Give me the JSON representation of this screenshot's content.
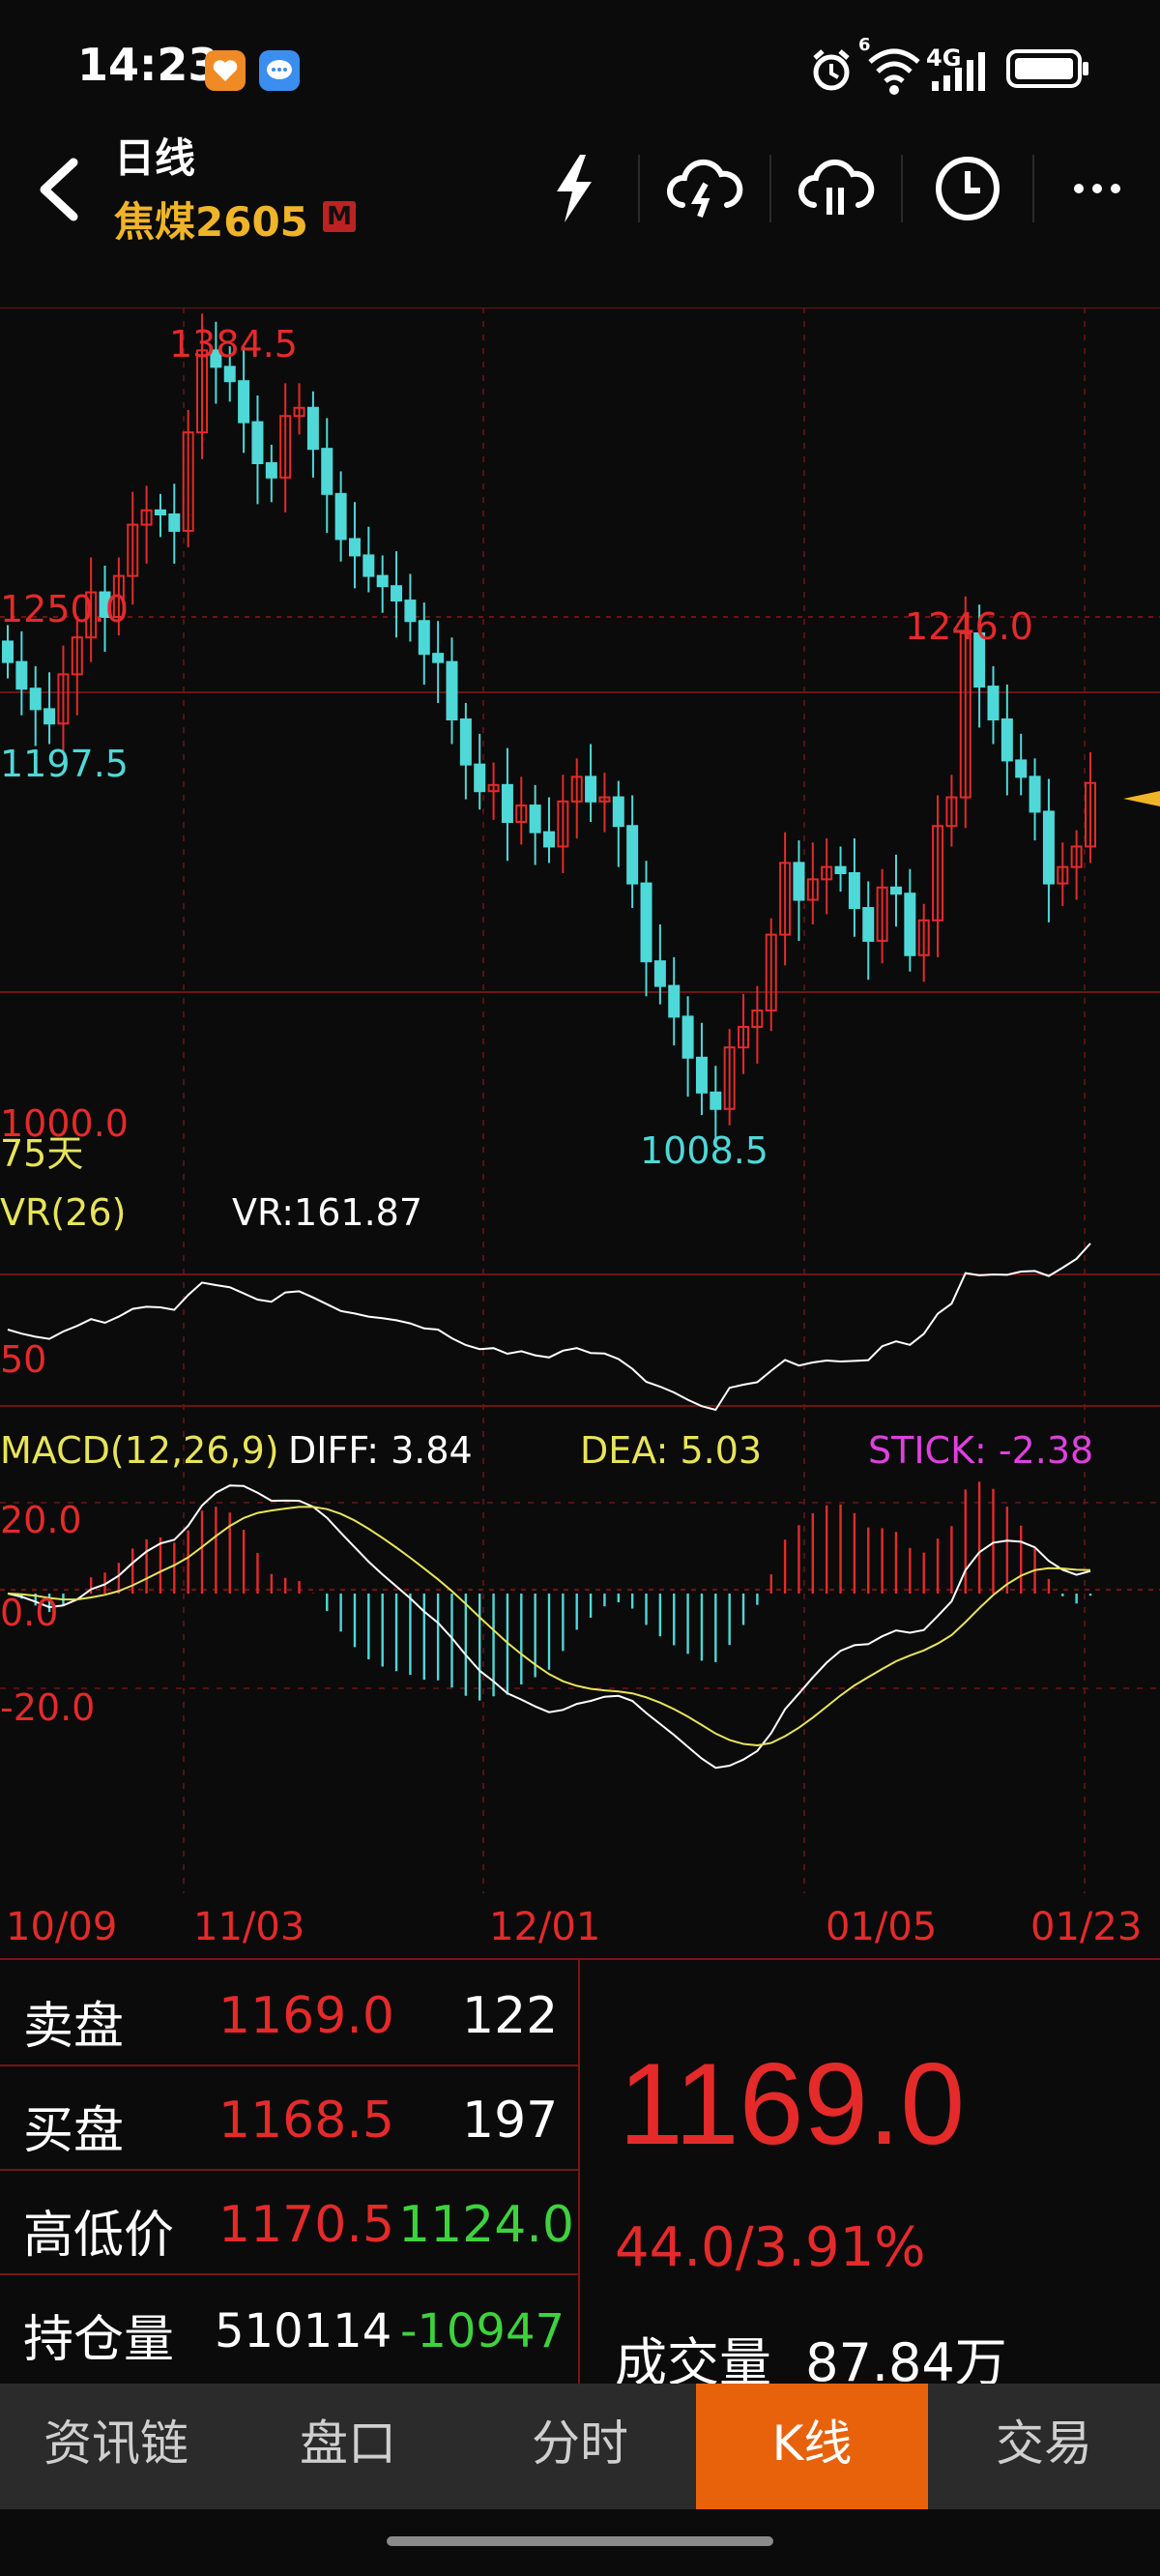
{
  "status": {
    "time": "14:23",
    "network": "4G",
    "sim": "6"
  },
  "header": {
    "title": "日线",
    "subtitle": "焦煤2605",
    "badge": "M"
  },
  "chart": {
    "price_labels": {
      "high": "1384.5",
      "mid": "1250.0",
      "left_low": "1197.5",
      "peak2": "1246.0",
      "low": "1008.5",
      "bottom": "1000.0",
      "period": "75天"
    },
    "vr": {
      "name": "VR(26)",
      "value": "VR:161.87",
      "axis": "50"
    },
    "macd": {
      "name": "MACD(12,26,9)",
      "diff": "DIFF: 3.84",
      "dea": "DEA: 5.03",
      "stick": "STICK: -2.38",
      "axis_top": "20.0",
      "axis_mid": "0.0",
      "axis_low": "-20.0"
    },
    "dates": [
      "10/09",
      "11/03",
      "12/01",
      "01/05",
      "01/23"
    ],
    "colors": {
      "up": "#e52a2a",
      "down": "#4fd8d8",
      "dea": "#e8e45a",
      "stick": "#e040e0",
      "grid": "#6e1414"
    }
  },
  "chart_data": {
    "type": "candlestick",
    "title": "焦煤2605",
    "period": "日线",
    "y_labels": [
      1000.0,
      1250.0
    ],
    "high": 1384.5,
    "low": 1008.5,
    "marked_high2": 1246.0,
    "marked_low_left": 1197.5,
    "x_labels": [
      "10/09",
      "11/03",
      "12/01",
      "01/05",
      "01/23"
    ],
    "closes": [
      1228,
      1215,
      1205,
      1198,
      1222,
      1240,
      1262,
      1250,
      1270,
      1295,
      1302,
      1300,
      1292,
      1340,
      1380,
      1372,
      1365,
      1345,
      1325,
      1318,
      1348,
      1352,
      1332,
      1310,
      1288,
      1280,
      1270,
      1265,
      1258,
      1248,
      1232,
      1228,
      1200,
      1178,
      1165,
      1168,
      1150,
      1158,
      1145,
      1138,
      1160,
      1172,
      1160,
      1162,
      1148,
      1120,
      1082,
      1070,
      1055,
      1035,
      1018,
      1010,
      1040,
      1050,
      1058,
      1095,
      1130,
      1112,
      1122,
      1128,
      1125,
      1108,
      1092,
      1118,
      1115,
      1085,
      1102,
      1148,
      1162,
      1242,
      1216,
      1200,
      1180,
      1172,
      1155,
      1120,
      1128,
      1138,
      1169
    ],
    "vr_series": {
      "name": "VR(26)",
      "last": 161.87,
      "axis_label": 50
    },
    "macd": {
      "diff": 3.84,
      "dea": 5.03,
      "stick": -2.38,
      "axis": [
        20.0,
        0.0,
        -20.0
      ]
    }
  },
  "quote": {
    "sell_label": "卖盘",
    "sell_price": "1169.0",
    "sell_qty": "122",
    "buy_label": "买盘",
    "buy_price": "1168.5",
    "buy_qty": "197",
    "hl_label": "高低价",
    "high": "1170.5",
    "low": "1124.0",
    "oi_label": "持仓量",
    "oi": "510114",
    "oi_change": "-10947",
    "last_price": "1169.0",
    "change": "44.0/3.91%",
    "volume_label": "成交量",
    "volume": "87.84万"
  },
  "tabs": [
    "资讯链",
    "盘口",
    "分时",
    "K线",
    "交易"
  ],
  "active_tab": "K线"
}
